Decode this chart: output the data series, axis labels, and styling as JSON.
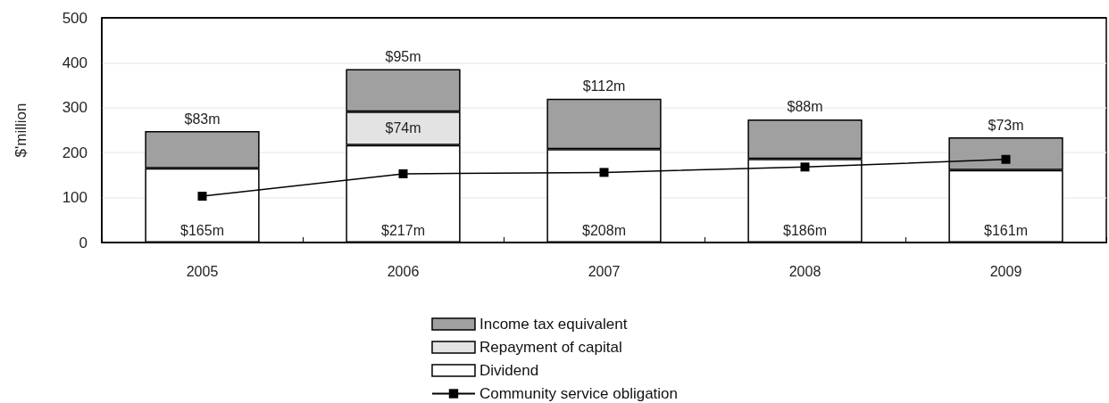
{
  "chart_data": {
    "type": "bar",
    "ylabel": "$'million",
    "categories": [
      "2005",
      "2006",
      "2007",
      "2008",
      "2009"
    ],
    "stacked": true,
    "series": [
      {
        "name": "Dividend",
        "color": "#ffffff",
        "values": [
          165,
          217,
          208,
          186,
          161
        ],
        "value_labels": [
          "$165m",
          "$217m",
          "$208m",
          "$186m",
          "$161m"
        ]
      },
      {
        "name": "Repayment of capital",
        "color": "#e3e3e3",
        "values": [
          null,
          74,
          null,
          null,
          null
        ],
        "value_labels": [
          null,
          "$74m",
          null,
          null,
          null
        ]
      },
      {
        "name": "Income tax equivalent",
        "color": "#a0a0a0",
        "values": [
          83,
          95,
          112,
          88,
          73
        ],
        "value_labels": [
          "$83m",
          "$95m",
          "$112m",
          "$88m",
          "$73m"
        ]
      },
      {
        "name": "Community service obligation",
        "type": "line",
        "color": "#000000",
        "values": [
          103,
          153,
          156,
          168,
          185
        ]
      }
    ],
    "marker": "square",
    "ylim": [
      0,
      500
    ],
    "yticks": [
      0,
      100,
      200,
      300,
      400,
      500
    ],
    "grid": "y",
    "legend": "bottom"
  }
}
